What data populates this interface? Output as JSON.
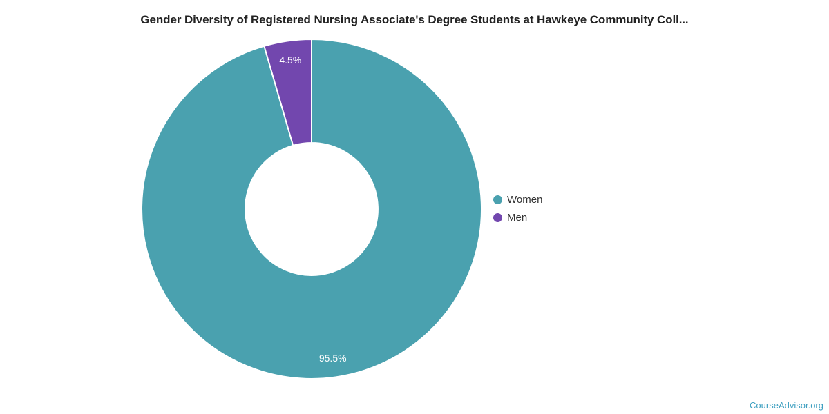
{
  "header": {
    "title": "Gender Diversity of Registered Nursing Associate's Degree Students at Hawkeye Community Coll..."
  },
  "legend": {
    "items": [
      {
        "label": "Women",
        "color": "#4AA1AF"
      },
      {
        "label": "Men",
        "color": "#7247AE"
      }
    ]
  },
  "footer": {
    "watermark": "CourseAdvisor.org",
    "watermark_color": "#3FA0C1"
  },
  "chart_data": {
    "type": "pie",
    "title": "Gender Diversity of Registered Nursing Associate's Degree Students at Hawkeye Community Coll...",
    "categories": [
      "Women",
      "Men"
    ],
    "values": [
      95.5,
      4.5
    ],
    "data_labels": [
      "95.5%",
      "4.5%"
    ],
    "colors": [
      "#4AA1AF",
      "#7247AE"
    ],
    "unit": "%",
    "donut": true,
    "inner_radius_ratio": 0.39,
    "start_angle_deg": 0,
    "direction": "clockwise",
    "legend_position": "right",
    "slice_border_color": "#FFFFFF",
    "label_color": "#FFFFFF",
    "background": "#FFFFFF"
  }
}
